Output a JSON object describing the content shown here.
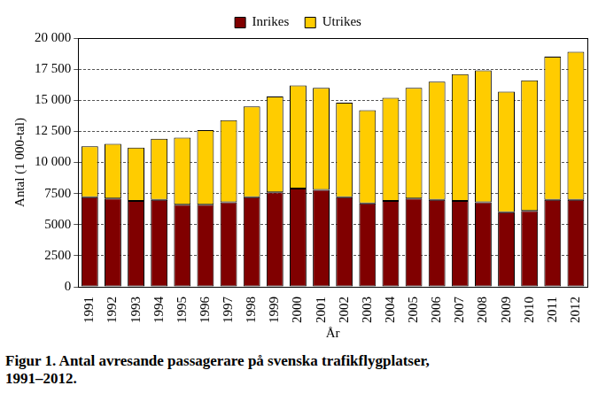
{
  "chart_data": {
    "type": "bar",
    "title": [
      "Figur 1. Antal avresande passagerare på svenska trafikflygplatser,",
      "1991–2012."
    ],
    "x_label": "År",
    "y_label": "Antal (1 000-tal)",
    "categories": [
      "1991",
      "1992",
      "1993",
      "1994",
      "1995",
      "1996",
      "1997",
      "1998",
      "1999",
      "2000",
      "2001",
      "2002",
      "2003",
      "2004",
      "2005",
      "2006",
      "2007",
      "2008",
      "2009",
      "2010",
      "2011",
      "2012"
    ],
    "series": [
      {
        "name": "Inrikes",
        "color": "#800000",
        "values": [
          7200,
          7100,
          6900,
          7000,
          6600,
          6600,
          6800,
          7200,
          7600,
          7900,
          7800,
          7200,
          6700,
          6900,
          7100,
          7000,
          6900,
          6800,
          6000,
          6100,
          7000,
          7000
        ]
      },
      {
        "name": "Utrikes",
        "color": "#ffcc00",
        "values": [
          4100,
          4400,
          4300,
          4900,
          5400,
          6000,
          6600,
          7300,
          7700,
          8300,
          8200,
          7600,
          7500,
          8300,
          8900,
          9500,
          10200,
          10600,
          9700,
          10500,
          11500,
          11900
        ]
      }
    ],
    "stacked": true,
    "ylim": [
      0,
      20000
    ],
    "yticks": [
      0,
      2500,
      5000,
      7500,
      {
        "value": 10000,
        "label": "10 000"
      },
      {
        "value": 12500,
        "label": "12 500"
      },
      {
        "value": 15000,
        "label": "15 000"
      },
      {
        "value": 17500,
        "label": "17 500"
      },
      {
        "value": 20000,
        "label": "20 000"
      }
    ],
    "grid": true,
    "legend": "top"
  }
}
